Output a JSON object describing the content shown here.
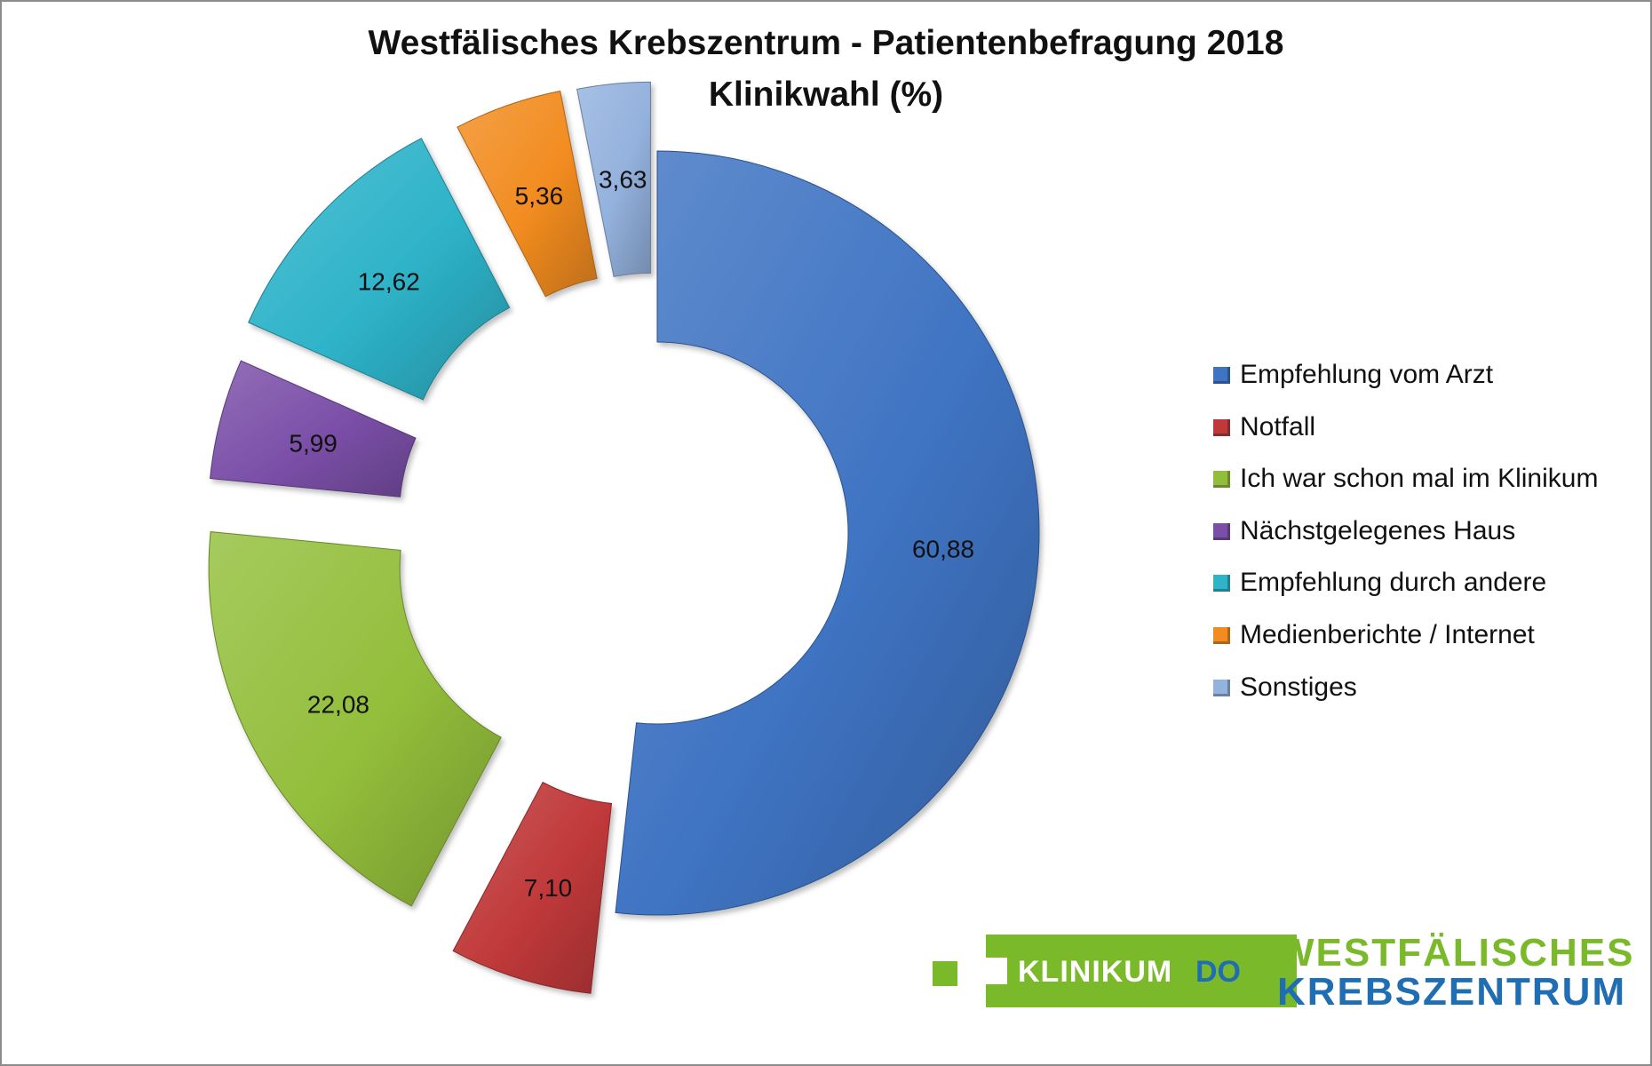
{
  "chart_data": {
    "type": "pie",
    "title": "Westfälisches Krebszentrum - Patientenbefragung 2018",
    "subtitle": "Klinikwahl (%)",
    "legend_position": "right",
    "slices": [
      {
        "label": "Empfehlung vom Arzt",
        "value": 60.88,
        "value_label": "60,88",
        "color": "#3f74c3"
      },
      {
        "label": "Notfall",
        "value": 7.1,
        "value_label": "7,10",
        "color": "#c0393a"
      },
      {
        "label": "Ich war schon mal im Klinikum",
        "value": 22.08,
        "value_label": "22,08",
        "color": "#93be3b"
      },
      {
        "label": "Nächstgelegenes Haus",
        "value": 5.99,
        "value_label": "5,99",
        "color": "#7b4fa8"
      },
      {
        "label": "Empfehlung durch andere",
        "value": 12.62,
        "value_label": "12,62",
        "color": "#2eb3c9"
      },
      {
        "label": "Medienberichte / Internet",
        "value": 5.36,
        "value_label": "5,36",
        "color": "#f28c20"
      },
      {
        "label": "Sonstiges",
        "value": 3.63,
        "value_label": "3,63",
        "color": "#94b2de"
      }
    ]
  },
  "logo": {
    "klinikum": "KLINIKUM",
    "do": "DO",
    "line1": "WESTFÄLISCHES",
    "line2": "KREBSZENTRUM"
  }
}
